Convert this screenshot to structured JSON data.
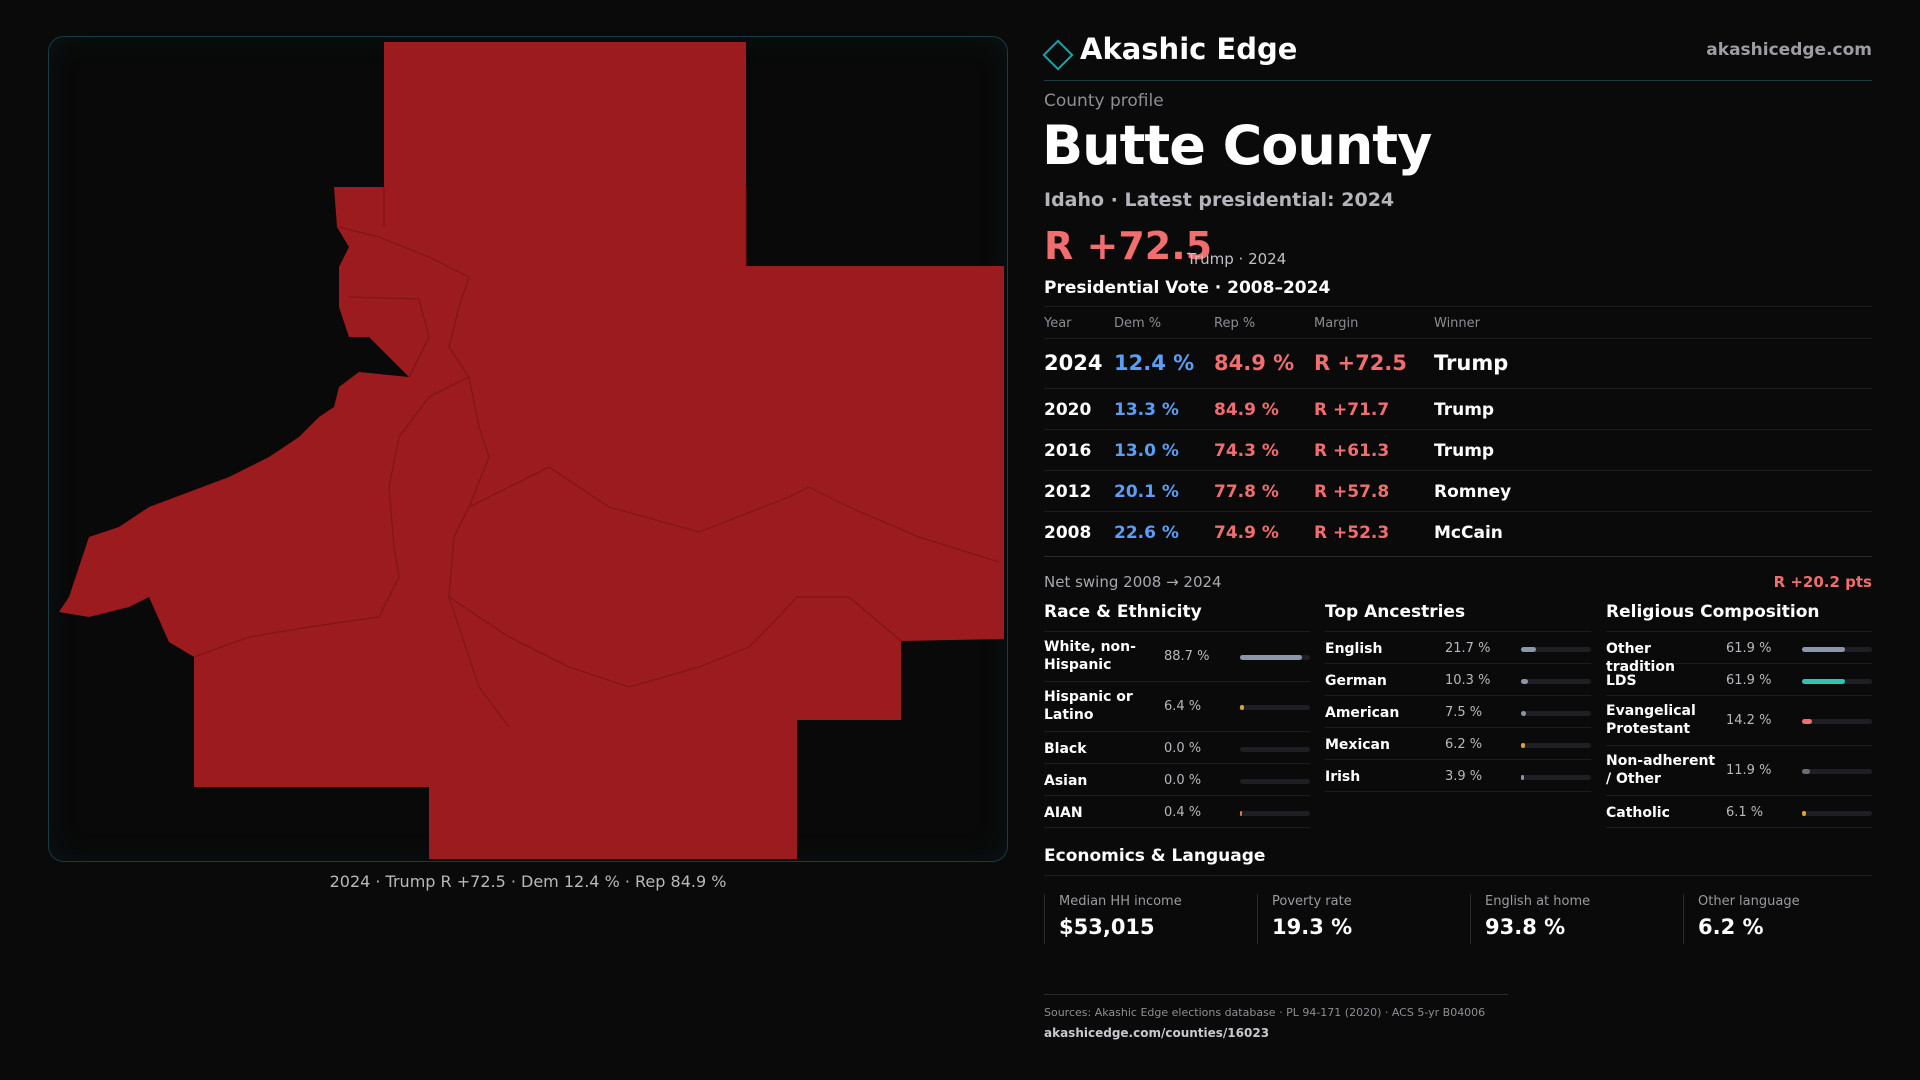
{
  "brand": {
    "name": "Akashic Edge",
    "url": "akashicedge.com"
  },
  "profile": {
    "eyebrow": "County profile",
    "county": "Butte County",
    "subtitle": "Idaho · Latest presidential: 2024",
    "margin": "R +72.5",
    "margin_note": "Trump · 2024"
  },
  "map": {
    "caption": "2024 · Trump R +72.5 · Dem 12.4 % · Rep 84.9 %",
    "fill_color": "#9b1b1e"
  },
  "vote": {
    "title": "Presidential Vote · 2008–2024",
    "headers": [
      "Year",
      "Dem %",
      "Rep %",
      "Margin",
      "Winner"
    ],
    "rows": [
      {
        "year": "2024",
        "dem": "12.4 %",
        "rep": "84.9 %",
        "margin": "R +72.5",
        "winner": "Trump"
      },
      {
        "year": "2020",
        "dem": "13.3 %",
        "rep": "84.9 %",
        "margin": "R +71.7",
        "winner": "Trump"
      },
      {
        "year": "2016",
        "dem": "13.0 %",
        "rep": "74.3 %",
        "margin": "R +61.3",
        "winner": "Trump"
      },
      {
        "year": "2012",
        "dem": "20.1 %",
        "rep": "77.8 %",
        "margin": "R +57.8",
        "winner": "Romney"
      },
      {
        "year": "2008",
        "dem": "22.6 %",
        "rep": "74.9 %",
        "margin": "R +52.3",
        "winner": "McCain"
      }
    ],
    "swing_label": "Net swing 2008 → 2024",
    "swing_value": "R +20.2 pts"
  },
  "race": {
    "title": "Race & Ethnicity",
    "rows": [
      {
        "label": "White, non-Hispanic",
        "pct": "88.7 %",
        "value": 88.7,
        "color": "#8d96a8",
        "tall": true
      },
      {
        "label": "Hispanic or Latino",
        "pct": "6.4 %",
        "value": 6.4,
        "color": "#e0a13a",
        "tall": true
      },
      {
        "label": "Black",
        "pct": "0.0 %",
        "value": 0.0,
        "color": "#8d96a8",
        "tall": false
      },
      {
        "label": "Asian",
        "pct": "0.0 %",
        "value": 0.0,
        "color": "#8d96a8",
        "tall": false
      },
      {
        "label": "AIAN",
        "pct": "0.4 %",
        "value": 0.4,
        "color": "#e07a3a",
        "tall": false
      }
    ]
  },
  "ancestry": {
    "title": "Top Ancestries",
    "rows": [
      {
        "label": "English",
        "pct": "21.7 %",
        "value": 21.7,
        "color": "#8d96a8",
        "tall": false
      },
      {
        "label": "German",
        "pct": "10.3 %",
        "value": 10.3,
        "color": "#8d96a8",
        "tall": false
      },
      {
        "label": "American",
        "pct": "7.5 %",
        "value": 7.5,
        "color": "#8d96a8",
        "tall": false
      },
      {
        "label": "Mexican",
        "pct": "6.2 %",
        "value": 6.2,
        "color": "#e0a13a",
        "tall": false
      },
      {
        "label": "Irish",
        "pct": "3.9 %",
        "value": 3.9,
        "color": "#8d96a8",
        "tall": false
      }
    ]
  },
  "religion": {
    "title": "Religious Composition",
    "rows": [
      {
        "label": "Other tradition",
        "pct": "61.9 %",
        "value": 61.9,
        "color": "#8d96a8",
        "tall": false
      },
      {
        "label": "LDS",
        "pct": "61.9 %",
        "value": 61.9,
        "color": "#2ec4b0",
        "tall": false
      },
      {
        "label": "Evangelical Protestant",
        "pct": "14.2 %",
        "value": 14.2,
        "color": "#f06e6e",
        "tall": true
      },
      {
        "label": "Non-adherent / Other",
        "pct": "11.9 %",
        "value": 11.9,
        "color": "#6c6c74",
        "tall": true
      },
      {
        "label": "Catholic",
        "pct": "6.1 %",
        "value": 6.1,
        "color": "#e0a13a",
        "tall": false
      }
    ]
  },
  "economics": {
    "title": "Economics & Language",
    "stats": [
      {
        "label": "Median HH income",
        "value": "$53,015"
      },
      {
        "label": "Poverty rate",
        "value": "19.3 %"
      },
      {
        "label": "English at home",
        "value": "93.8 %"
      },
      {
        "label": "Other language",
        "value": "6.2 %"
      }
    ]
  },
  "footer": {
    "sources": "Sources: Akashic Edge elections database · PL 94-171 (2020) · ACS 5-yr B04006",
    "url": "akashicedge.com/counties/16023"
  }
}
